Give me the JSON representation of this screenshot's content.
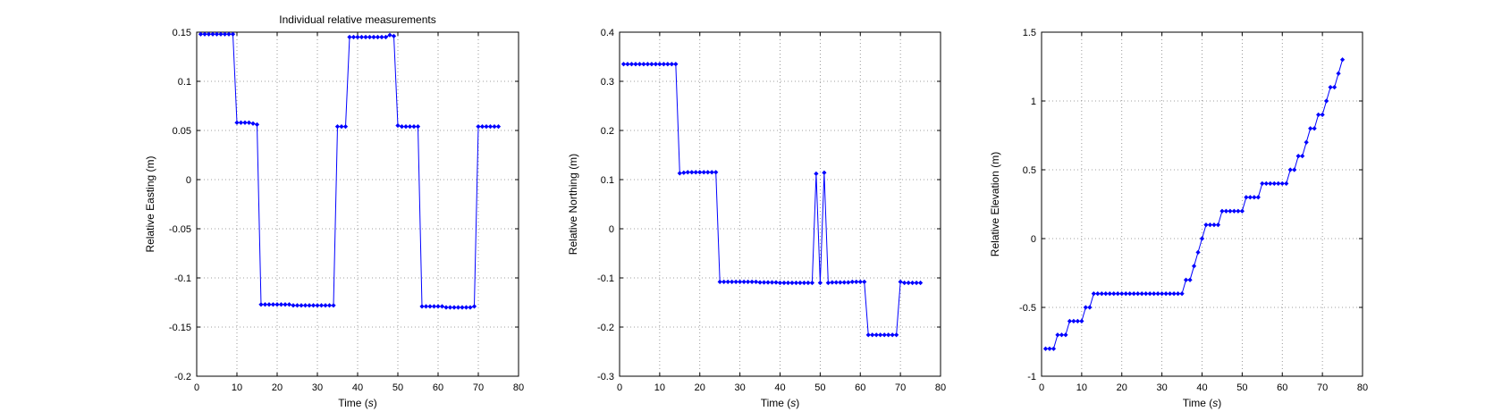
{
  "figure": {
    "background": "#ffffff",
    "line_color": "#0000ff",
    "grid_color": "#808080"
  },
  "chart_data": [
    {
      "type": "line",
      "title": "Individual relative measurements",
      "xlabel": "Time",
      "xlabel_unit": "s",
      "ylabel": "Relative Easting (m)",
      "xlim": [
        0,
        80
      ],
      "ylim": [
        -0.2,
        0.15
      ],
      "xticks": [
        0,
        10,
        20,
        30,
        40,
        50,
        60,
        70,
        80
      ],
      "xtick_labels": [
        "0",
        "10",
        "20",
        "30",
        "40",
        "50",
        "60",
        "70",
        "80"
      ],
      "yticks": [
        -0.2,
        -0.15,
        -0.1,
        -0.05,
        0,
        0.05,
        0.1,
        0.15
      ],
      "ytick_labels": [
        "-0.2",
        "-0.15",
        "-0.1",
        "-0.05",
        "0",
        "0.05",
        "0.1",
        "0.15"
      ],
      "grid": true,
      "series": [
        {
          "name": "Relative Easting",
          "x": [
            1,
            2,
            3,
            4,
            5,
            6,
            7,
            8,
            9,
            10,
            11,
            12,
            13,
            14,
            15,
            16,
            17,
            18,
            19,
            20,
            21,
            22,
            23,
            24,
            25,
            26,
            27,
            28,
            29,
            30,
            31,
            32,
            33,
            34,
            35,
            36,
            37,
            38,
            39,
            40,
            41,
            42,
            43,
            44,
            45,
            46,
            47,
            48,
            49,
            50,
            51,
            52,
            53,
            54,
            55,
            56,
            57,
            58,
            59,
            60,
            61,
            62,
            63,
            64,
            65,
            66,
            67,
            68,
            69,
            70,
            71,
            72,
            73,
            74,
            75
          ],
          "y": [
            0.148,
            0.148,
            0.148,
            0.148,
            0.148,
            0.148,
            0.148,
            0.148,
            0.148,
            0.058,
            0.058,
            0.058,
            0.058,
            0.057,
            0.056,
            -0.127,
            -0.127,
            -0.127,
            -0.127,
            -0.127,
            -0.127,
            -0.127,
            -0.127,
            -0.128,
            -0.128,
            -0.128,
            -0.128,
            -0.128,
            -0.128,
            -0.128,
            -0.128,
            -0.128,
            -0.128,
            -0.128,
            0.054,
            0.054,
            0.054,
            0.145,
            0.145,
            0.145,
            0.145,
            0.145,
            0.145,
            0.145,
            0.145,
            0.145,
            0.145,
            0.147,
            0.146,
            0.055,
            0.054,
            0.054,
            0.054,
            0.054,
            0.054,
            -0.129,
            -0.129,
            -0.129,
            -0.129,
            -0.129,
            -0.129,
            -0.13,
            -0.13,
            -0.13,
            -0.13,
            -0.13,
            -0.13,
            -0.13,
            -0.129,
            0.054,
            0.054,
            0.054,
            0.054,
            0.054,
            0.054
          ]
        }
      ]
    },
    {
      "type": "line",
      "title": "",
      "xlabel": "Time",
      "xlabel_unit": "s",
      "ylabel": "Relative Northing (m)",
      "xlim": [
        0,
        80
      ],
      "ylim": [
        -0.3,
        0.4
      ],
      "xticks": [
        0,
        10,
        20,
        30,
        40,
        50,
        60,
        70,
        80
      ],
      "xtick_labels": [
        "0",
        "10",
        "20",
        "30",
        "40",
        "50",
        "60",
        "70",
        "80"
      ],
      "yticks": [
        -0.3,
        -0.2,
        -0.1,
        0,
        0.1,
        0.2,
        0.3,
        0.4
      ],
      "ytick_labels": [
        "-0.3",
        "-0.2",
        "-0.1",
        "0",
        "0.1",
        "0.2",
        "0.3",
        "0.4"
      ],
      "grid": true,
      "series": [
        {
          "name": "Relative Northing",
          "x": [
            1,
            2,
            3,
            4,
            5,
            6,
            7,
            8,
            9,
            10,
            11,
            12,
            13,
            14,
            15,
            16,
            17,
            18,
            19,
            20,
            21,
            22,
            23,
            24,
            25,
            26,
            27,
            28,
            29,
            30,
            31,
            32,
            33,
            34,
            35,
            36,
            37,
            38,
            39,
            40,
            41,
            42,
            43,
            44,
            45,
            46,
            47,
            48,
            49,
            50,
            51,
            52,
            53,
            54,
            55,
            56,
            57,
            58,
            59,
            60,
            61,
            62,
            63,
            64,
            65,
            66,
            67,
            68,
            69,
            70,
            71,
            72,
            73,
            74,
            75
          ],
          "y": [
            0.335,
            0.335,
            0.335,
            0.335,
            0.335,
            0.335,
            0.335,
            0.335,
            0.335,
            0.335,
            0.335,
            0.335,
            0.335,
            0.335,
            0.113,
            0.114,
            0.115,
            0.115,
            0.115,
            0.115,
            0.115,
            0.115,
            0.115,
            0.115,
            -0.108,
            -0.108,
            -0.108,
            -0.108,
            -0.108,
            -0.108,
            -0.108,
            -0.108,
            -0.108,
            -0.108,
            -0.109,
            -0.109,
            -0.109,
            -0.109,
            -0.109,
            -0.11,
            -0.11,
            -0.11,
            -0.11,
            -0.11,
            -0.11,
            -0.11,
            -0.11,
            -0.11,
            0.112,
            -0.11,
            0.114,
            -0.11,
            -0.109,
            -0.109,
            -0.109,
            -0.109,
            -0.109,
            -0.108,
            -0.108,
            -0.108,
            -0.108,
            -0.216,
            -0.216,
            -0.216,
            -0.216,
            -0.216,
            -0.216,
            -0.216,
            -0.216,
            -0.108,
            -0.11,
            -0.11,
            -0.11,
            -0.11,
            -0.11
          ]
        }
      ]
    },
    {
      "type": "line",
      "title": "",
      "xlabel": "Time",
      "xlabel_unit": "s",
      "ylabel": "Relative Elevation (m)",
      "xlim": [
        0,
        80
      ],
      "ylim": [
        -1,
        1.5
      ],
      "xticks": [
        0,
        10,
        20,
        30,
        40,
        50,
        60,
        70,
        80
      ],
      "xtick_labels": [
        "0",
        "10",
        "20",
        "30",
        "40",
        "50",
        "60",
        "70",
        "80"
      ],
      "yticks": [
        -1,
        -0.5,
        0,
        0.5,
        1,
        1.5
      ],
      "ytick_labels": [
        "-1",
        "-0.5",
        "0",
        "0.5",
        "1",
        "1.5"
      ],
      "grid": true,
      "series": [
        {
          "name": "Relative Elevation",
          "x": [
            1,
            2,
            3,
            4,
            5,
            6,
            7,
            8,
            9,
            10,
            11,
            12,
            13,
            14,
            15,
            16,
            17,
            18,
            19,
            20,
            21,
            22,
            23,
            24,
            25,
            26,
            27,
            28,
            29,
            30,
            31,
            32,
            33,
            34,
            35,
            36,
            37,
            38,
            39,
            40,
            41,
            42,
            43,
            44,
            45,
            46,
            47,
            48,
            49,
            50,
            51,
            52,
            53,
            54,
            55,
            56,
            57,
            58,
            59,
            60,
            61,
            62,
            63,
            64,
            65,
            66,
            67,
            68,
            69,
            70,
            71,
            72,
            73,
            74,
            75
          ],
          "y": [
            -0.8,
            -0.8,
            -0.8,
            -0.7,
            -0.7,
            -0.7,
            -0.6,
            -0.6,
            -0.6,
            -0.6,
            -0.5,
            -0.5,
            -0.4,
            -0.4,
            -0.4,
            -0.4,
            -0.4,
            -0.4,
            -0.4,
            -0.4,
            -0.4,
            -0.4,
            -0.4,
            -0.4,
            -0.4,
            -0.4,
            -0.4,
            -0.4,
            -0.4,
            -0.4,
            -0.4,
            -0.4,
            -0.4,
            -0.4,
            -0.4,
            -0.3,
            -0.3,
            -0.2,
            -0.1,
            0,
            0.1,
            0.1,
            0.1,
            0.1,
            0.2,
            0.2,
            0.2,
            0.2,
            0.2,
            0.2,
            0.3,
            0.3,
            0.3,
            0.3,
            0.4,
            0.4,
            0.4,
            0.4,
            0.4,
            0.4,
            0.4,
            0.5,
            0.5,
            0.6,
            0.6,
            0.7,
            0.8,
            0.8,
            0.9,
            0.9,
            1.0,
            1.1,
            1.1,
            1.2,
            1.3
          ]
        }
      ]
    }
  ]
}
